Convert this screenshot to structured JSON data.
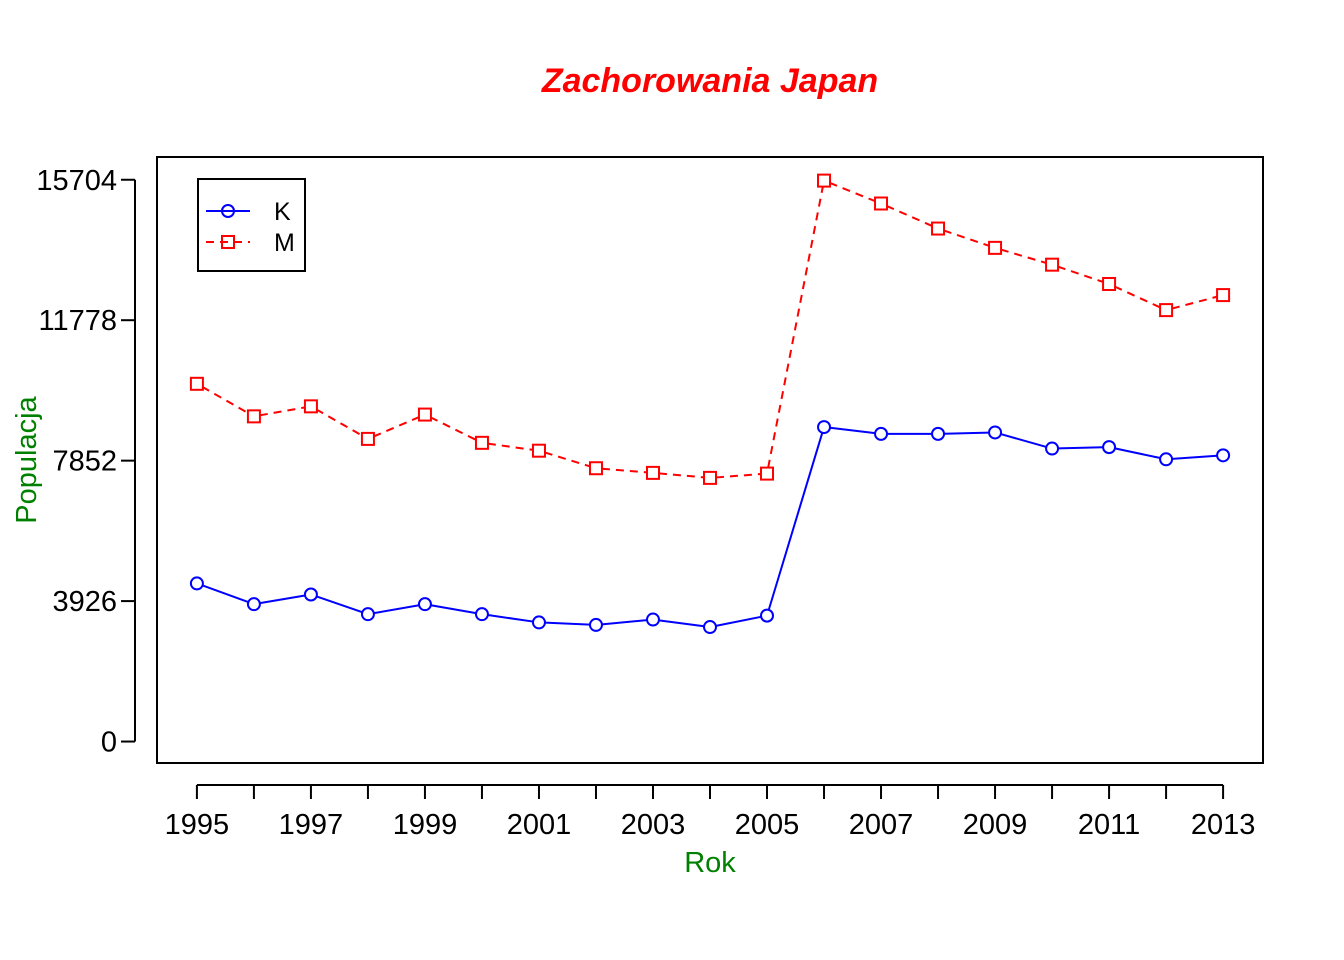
{
  "chart_data": {
    "type": "line",
    "title": "Zachorowania Japan",
    "xlabel": "Rok",
    "ylabel": "Populacja",
    "x": [
      1995,
      1996,
      1997,
      1998,
      1999,
      2000,
      2001,
      2002,
      2003,
      2004,
      2005,
      2006,
      2007,
      2008,
      2009,
      2010,
      2011,
      2012,
      2013
    ],
    "x_tick_labels": [
      "1995",
      "1997",
      "1999",
      "2001",
      "2003",
      "2005",
      "2007",
      "2009",
      "2011",
      "2013"
    ],
    "y_ticks": [
      0,
      3926,
      7852,
      11778,
      15704
    ],
    "y_tick_labels": [
      "0",
      "3926",
      "7852",
      "11778",
      "15704"
    ],
    "xlim": [
      1994.3,
      2013.7
    ],
    "ylim": [
      -600,
      16340
    ],
    "grid": false,
    "legend_position": "top-left",
    "series": [
      {
        "name": "K",
        "color": "#0000ff",
        "line_style": "solid",
        "marker": "circle",
        "values": [
          4420,
          3840,
          4110,
          3560,
          3840,
          3560,
          3330,
          3260,
          3410,
          3200,
          3520,
          8790,
          8600,
          8600,
          8640,
          8190,
          8230,
          7890,
          8000
        ]
      },
      {
        "name": "M",
        "color": "#ff0000",
        "line_style": "dashed",
        "marker": "square",
        "values": [
          10000,
          9090,
          9370,
          8460,
          9140,
          8350,
          8130,
          7640,
          7510,
          7370,
          7490,
          15680,
          15040,
          14340,
          13800,
          13330,
          12790,
          12060,
          12480
        ]
      }
    ]
  }
}
